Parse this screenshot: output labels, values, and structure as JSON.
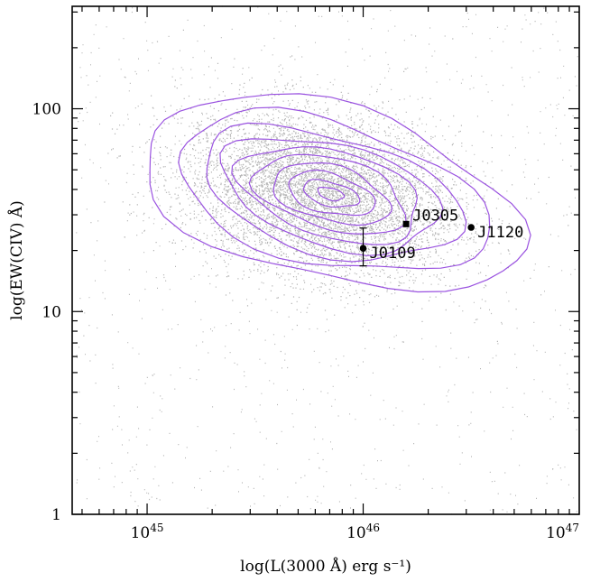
{
  "chart_data": {
    "type": "scatter",
    "x_scale": "log",
    "y_scale": "log",
    "xlim": [
      4.5e+44,
      1e+47
    ],
    "ylim": [
      1,
      320
    ],
    "xlabel": "log(L(3000 Å) erg s⁻¹)",
    "ylabel": "log(EW(CIV) Å)",
    "x_tick_labels": [
      {
        "value": 1e+45,
        "base": "10",
        "exp": "45"
      },
      {
        "value": 1e+46,
        "base": "10",
        "exp": "46"
      },
      {
        "value": 1e+47,
        "base": "10",
        "exp": "47"
      }
    ],
    "y_tick_labels": [
      {
        "value": 1,
        "label": "1"
      },
      {
        "value": 10,
        "label": "10"
      },
      {
        "value": 100,
        "label": "100"
      }
    ],
    "grid": false,
    "background_sample": {
      "description_color": "#b4b4b4",
      "center_logL": 45.8,
      "center_logEW": 1.58,
      "spread_logL": 0.32,
      "spread_logEW": 0.2
    },
    "contours": {
      "color": "#9a52e0",
      "center_logL": 45.85,
      "center_logEW": 1.58,
      "rx_levels_dex": [
        0.06,
        0.13,
        0.2,
        0.27,
        0.35,
        0.42,
        0.5,
        0.6,
        0.72,
        0.88
      ],
      "ry_levels_dex": [
        0.03,
        0.06,
        0.1,
        0.14,
        0.18,
        0.22,
        0.26,
        0.3,
        0.36,
        0.44
      ],
      "tilt_per_dex": -0.22
    },
    "points": [
      {
        "name": "J0109",
        "x": 1e+46,
        "y": 20.5,
        "yerr_low": 16.8,
        "yerr_high": 25.8,
        "marker": "circle"
      },
      {
        "name": "J0305",
        "x": 1.58e+46,
        "y": 27.0,
        "marker": "square"
      },
      {
        "name": "J1120",
        "x": 3.16e+46,
        "y": 26.0,
        "marker": "circle"
      }
    ]
  }
}
